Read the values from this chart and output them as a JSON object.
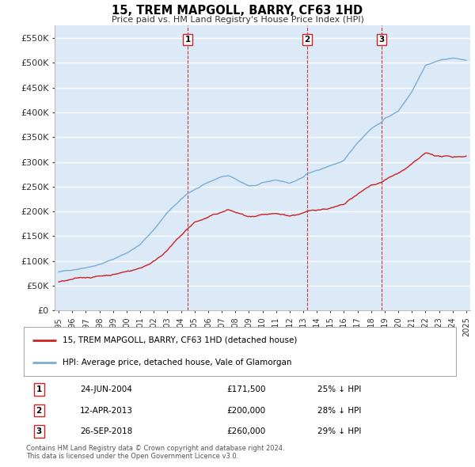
{
  "title": "15, TREM MAPGOLL, BARRY, CF63 1HD",
  "subtitle": "Price paid vs. HM Land Registry's House Price Index (HPI)",
  "ylim": [
    0,
    575000
  ],
  "yticks": [
    0,
    50000,
    100000,
    150000,
    200000,
    250000,
    300000,
    350000,
    400000,
    450000,
    500000,
    550000
  ],
  "ytick_labels": [
    "£0",
    "£50K",
    "£100K",
    "£150K",
    "£200K",
    "£250K",
    "£300K",
    "£350K",
    "£400K",
    "£450K",
    "£500K",
    "£550K"
  ],
  "xlim_start": 1994.7,
  "xlim_end": 2025.3,
  "hpi_color": "#7aadd4",
  "price_color": "#cc2222",
  "vline_color": "#cc2222",
  "plot_bg_color": "#dce9f7",
  "grid_color": "#ffffff",
  "fig_bg_color": "#ffffff",
  "transactions": [
    {
      "num": 1,
      "date": "24-JUN-2004",
      "price": 171500,
      "pct": "25%",
      "year": 2004.5
    },
    {
      "num": 2,
      "date": "12-APR-2013",
      "price": 200000,
      "pct": "28%",
      "year": 2013.3
    },
    {
      "num": 3,
      "date": "26-SEP-2018",
      "price": 260000,
      "pct": "29%",
      "year": 2018.75
    }
  ],
  "legend_label_red": "15, TREM MAPGOLL, BARRY, CF63 1HD (detached house)",
  "legend_label_blue": "HPI: Average price, detached house, Vale of Glamorgan",
  "footnote": "Contains HM Land Registry data © Crown copyright and database right 2024.\nThis data is licensed under the Open Government Licence v3.0.",
  "hpi_anchor_points": [
    [
      1995.0,
      78000
    ],
    [
      1996.0,
      82000
    ],
    [
      1997.0,
      88000
    ],
    [
      1998.0,
      95000
    ],
    [
      1999.0,
      105000
    ],
    [
      2000.0,
      118000
    ],
    [
      2001.0,
      135000
    ],
    [
      2002.0,
      165000
    ],
    [
      2003.0,
      200000
    ],
    [
      2004.0,
      225000
    ],
    [
      2004.5,
      237000
    ],
    [
      2005.0,
      245000
    ],
    [
      2006.0,
      258000
    ],
    [
      2007.0,
      270000
    ],
    [
      2007.5,
      272000
    ],
    [
      2008.0,
      265000
    ],
    [
      2009.0,
      252000
    ],
    [
      2009.5,
      252000
    ],
    [
      2010.0,
      258000
    ],
    [
      2011.0,
      262000
    ],
    [
      2012.0,
      255000
    ],
    [
      2013.0,
      268000
    ],
    [
      2013.3,
      275000
    ],
    [
      2014.0,
      280000
    ],
    [
      2015.0,
      290000
    ],
    [
      2016.0,
      300000
    ],
    [
      2017.0,
      335000
    ],
    [
      2018.0,
      365000
    ],
    [
      2018.75,
      378000
    ],
    [
      2019.0,
      385000
    ],
    [
      2020.0,
      400000
    ],
    [
      2021.0,
      440000
    ],
    [
      2022.0,
      495000
    ],
    [
      2023.0,
      505000
    ],
    [
      2024.0,
      510000
    ],
    [
      2025.0,
      505000
    ]
  ],
  "price_anchor_points": [
    [
      1995.0,
      58000
    ],
    [
      1996.0,
      62000
    ],
    [
      1997.0,
      66000
    ],
    [
      1998.0,
      70000
    ],
    [
      1999.0,
      75000
    ],
    [
      2000.0,
      82000
    ],
    [
      2001.0,
      90000
    ],
    [
      2002.0,
      105000
    ],
    [
      2003.0,
      130000
    ],
    [
      2004.0,
      158000
    ],
    [
      2004.5,
      171500
    ],
    [
      2005.0,
      185000
    ],
    [
      2006.0,
      195000
    ],
    [
      2007.0,
      205000
    ],
    [
      2007.5,
      210000
    ],
    [
      2008.0,
      205000
    ],
    [
      2009.0,
      195000
    ],
    [
      2009.5,
      193000
    ],
    [
      2010.0,
      195000
    ],
    [
      2011.0,
      195000
    ],
    [
      2012.0,
      192000
    ],
    [
      2013.0,
      198000
    ],
    [
      2013.3,
      200000
    ],
    [
      2014.0,
      205000
    ],
    [
      2015.0,
      210000
    ],
    [
      2016.0,
      215000
    ],
    [
      2017.0,
      235000
    ],
    [
      2018.0,
      252000
    ],
    [
      2018.75,
      260000
    ],
    [
      2019.0,
      265000
    ],
    [
      2020.0,
      278000
    ],
    [
      2021.0,
      295000
    ],
    [
      2022.0,
      315000
    ],
    [
      2023.0,
      310000
    ],
    [
      2024.0,
      308000
    ],
    [
      2025.0,
      312000
    ]
  ]
}
